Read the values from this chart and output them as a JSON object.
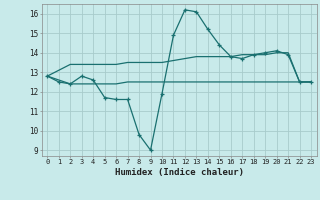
{
  "title": "",
  "xlabel": "Humidex (Indice chaleur)",
  "ylabel": "",
  "bg_color": "#c8eaea",
  "grid_color": "#a8cccc",
  "line_color": "#1a7070",
  "xlim": [
    -0.5,
    23.5
  ],
  "ylim": [
    8.7,
    16.5
  ],
  "yticks": [
    9,
    10,
    11,
    12,
    13,
    14,
    15,
    16
  ],
  "xticks": [
    0,
    1,
    2,
    3,
    4,
    5,
    6,
    7,
    8,
    9,
    10,
    11,
    12,
    13,
    14,
    15,
    16,
    17,
    18,
    19,
    20,
    21,
    22,
    23
  ],
  "series1_x": [
    0,
    1,
    2,
    3,
    4,
    5,
    6,
    7,
    8,
    9,
    10,
    11,
    12,
    13,
    14,
    15,
    16,
    17,
    18,
    19,
    20,
    21,
    22,
    23
  ],
  "series1_y": [
    12.8,
    12.5,
    12.4,
    12.8,
    12.6,
    11.7,
    11.6,
    11.6,
    9.8,
    9.0,
    11.9,
    14.9,
    16.2,
    16.1,
    15.2,
    14.4,
    13.8,
    13.7,
    13.9,
    14.0,
    14.1,
    13.9,
    12.5,
    12.5
  ],
  "series2_x": [
    0,
    2,
    3,
    4,
    5,
    6,
    7,
    8,
    9,
    10,
    11,
    12,
    13,
    14,
    15,
    16,
    17,
    18,
    19,
    20,
    21,
    22,
    23
  ],
  "series2_y": [
    12.8,
    13.4,
    13.4,
    13.4,
    13.4,
    13.4,
    13.5,
    13.5,
    13.5,
    13.5,
    13.6,
    13.7,
    13.8,
    13.8,
    13.8,
    13.8,
    13.9,
    13.9,
    13.9,
    14.0,
    14.0,
    12.5,
    12.5
  ],
  "series3_x": [
    0,
    2,
    3,
    4,
    5,
    6,
    7,
    8,
    9,
    10,
    11,
    12,
    13,
    14,
    15,
    16,
    17,
    18,
    19,
    20,
    21,
    22,
    23
  ],
  "series3_y": [
    12.8,
    12.4,
    12.4,
    12.4,
    12.4,
    12.4,
    12.5,
    12.5,
    12.5,
    12.5,
    12.5,
    12.5,
    12.5,
    12.5,
    12.5,
    12.5,
    12.5,
    12.5,
    12.5,
    12.5,
    12.5,
    12.5,
    12.5
  ]
}
